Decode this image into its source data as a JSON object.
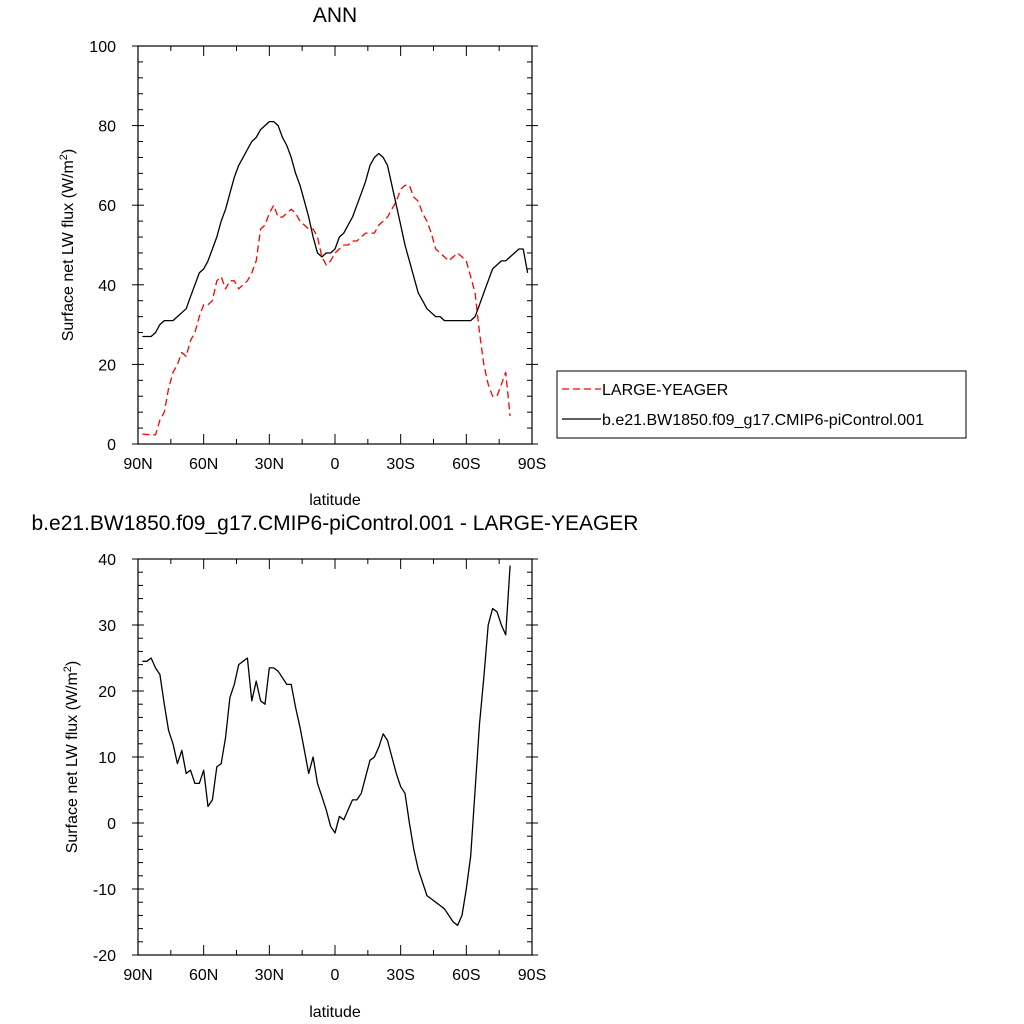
{
  "chart_data": [
    {
      "type": "line",
      "title": "ANN",
      "xlabel": "latitude",
      "ylabel": "Surface net LW flux (W/m",
      "ylabel_sup": "2",
      "ylabel_close": ")",
      "xlim": [
        90,
        -90
      ],
      "ylim": [
        0,
        100
      ],
      "xticks": [
        90,
        60,
        30,
        0,
        -30,
        -60,
        -90
      ],
      "xtick_labels": [
        "90N",
        "60N",
        "30N",
        "0",
        "30S",
        "60S",
        "90S"
      ],
      "yticks": [
        0,
        20,
        40,
        60,
        80,
        100
      ],
      "ytick_labels": [
        "0",
        "20",
        "40",
        "60",
        "80",
        "100"
      ],
      "legend_position": "right",
      "series": [
        {
          "name": "LARGE-YEAGER",
          "color": "#ff0000",
          "dash": "dashed",
          "x": [
            88,
            84,
            82,
            80,
            78,
            76,
            74,
            72,
            70,
            68,
            66,
            64,
            62,
            60,
            58,
            56,
            54,
            52,
            50,
            48,
            46,
            44,
            42,
            40,
            38,
            36,
            34,
            32,
            30,
            28,
            26,
            24,
            22,
            20,
            18,
            16,
            14,
            12,
            10,
            8,
            6,
            4,
            2,
            0,
            -2,
            -4,
            -6,
            -8,
            -10,
            -12,
            -14,
            -16,
            -18,
            -20,
            -22,
            -24,
            -26,
            -28,
            -30,
            -32,
            -34,
            -36,
            -38,
            -40,
            -42,
            -44,
            -46,
            -48,
            -50,
            -52,
            -54,
            -56,
            -58,
            -60,
            -62,
            -64,
            -66,
            -68,
            -70,
            -72,
            -74,
            -76,
            -78,
            -80
          ],
          "y": [
            2.5,
            2.3,
            2.3,
            6,
            8,
            14,
            18,
            20,
            23,
            22,
            26,
            28,
            32,
            35,
            35,
            36,
            41,
            42,
            39,
            41,
            41,
            39,
            40,
            41,
            43,
            46,
            54,
            55,
            58,
            60,
            57,
            57,
            58,
            59,
            58,
            56,
            55,
            54,
            54,
            52,
            47,
            45,
            46,
            48,
            49,
            50,
            50,
            51,
            51,
            52,
            53,
            53,
            53,
            55,
            56,
            57,
            59,
            61,
            64,
            65,
            65,
            62,
            61,
            58,
            56,
            53,
            49,
            48,
            47,
            46,
            47,
            48,
            47,
            46,
            42,
            38,
            28,
            20,
            15,
            12,
            12,
            15,
            18,
            7
          ]
        },
        {
          "name": "b.e21.BW1850.f09_g17.CMIP6-piControl.001",
          "color": "#000000",
          "dash": "solid",
          "x": [
            88,
            86,
            84,
            82,
            80,
            78,
            76,
            74,
            72,
            70,
            68,
            66,
            64,
            62,
            60,
            58,
            56,
            54,
            52,
            50,
            48,
            46,
            44,
            42,
            40,
            38,
            36,
            34,
            32,
            30,
            28,
            26,
            24,
            22,
            20,
            18,
            16,
            14,
            12,
            10,
            8,
            6,
            4,
            2,
            0,
            -2,
            -4,
            -6,
            -8,
            -10,
            -12,
            -14,
            -16,
            -18,
            -20,
            -22,
            -24,
            -26,
            -28,
            -30,
            -32,
            -34,
            -36,
            -38,
            -40,
            -42,
            -44,
            -46,
            -48,
            -50,
            -52,
            -54,
            -56,
            -58,
            -60,
            -62,
            -64,
            -66,
            -68,
            -70,
            -72,
            -74,
            -76,
            -78,
            -80,
            -82,
            -84,
            -86,
            -88
          ],
          "y": [
            27,
            27,
            27,
            28,
            30,
            31,
            31,
            31,
            32,
            33,
            34,
            37,
            40,
            43,
            44,
            46,
            49,
            52,
            56,
            59,
            63,
            67,
            70,
            72,
            74,
            76,
            77,
            79,
            80,
            81,
            81,
            80,
            77,
            75,
            72,
            68,
            65,
            61,
            57,
            52,
            48,
            47,
            48,
            48,
            49,
            52,
            53,
            55,
            57,
            60,
            63,
            66,
            70,
            72,
            73,
            72,
            70,
            65,
            60,
            55,
            50,
            46,
            42,
            38,
            36,
            34,
            33,
            32,
            32,
            31,
            31,
            31,
            31,
            31,
            31,
            31,
            32,
            35,
            38,
            41,
            44,
            45,
            46,
            46,
            47,
            48,
            49,
            49,
            43
          ]
        }
      ]
    },
    {
      "type": "line",
      "title": "b.e21.BW1850.f09_g17.CMIP6-piControl.001 - LARGE-YEAGER",
      "xlabel": "latitude",
      "ylabel": "Surface net LW flux (W/m",
      "ylabel_sup": "2",
      "ylabel_close": ")",
      "xlim": [
        90,
        -90
      ],
      "ylim": [
        -20,
        40
      ],
      "xticks": [
        90,
        60,
        30,
        0,
        -30,
        -60,
        -90
      ],
      "xtick_labels": [
        "90N",
        "60N",
        "30N",
        "0",
        "30S",
        "60S",
        "90S"
      ],
      "yticks": [
        -20,
        -10,
        0,
        10,
        20,
        30,
        40
      ],
      "ytick_labels": [
        "-20",
        "-10",
        "0",
        "10",
        "20",
        "30",
        "40"
      ],
      "series": [
        {
          "color": "#000000",
          "dash": "solid",
          "x": [
            88,
            86,
            84,
            82,
            80,
            78,
            76,
            74,
            72,
            70,
            68,
            66,
            64,
            62,
            60,
            58,
            56,
            54,
            52,
            50,
            48,
            46,
            44,
            42,
            40,
            38,
            36,
            34,
            32,
            30,
            28,
            26,
            24,
            22,
            20,
            18,
            16,
            14,
            12,
            10,
            8,
            6,
            4,
            2,
            0,
            -2,
            -4,
            -6,
            -8,
            -10,
            -12,
            -14,
            -16,
            -18,
            -20,
            -22,
            -24,
            -26,
            -28,
            -30,
            -32,
            -34,
            -36,
            -38,
            -40,
            -42,
            -44,
            -46,
            -48,
            -50,
            -52,
            -54,
            -56,
            -58,
            -60,
            -62,
            -64,
            -66,
            -68,
            -70,
            -72,
            -74,
            -76,
            -78,
            -80
          ],
          "y": [
            24.5,
            24.5,
            25,
            23.5,
            22.5,
            18,
            14,
            12,
            9,
            11,
            7.5,
            8,
            6,
            6,
            8,
            2.5,
            3.5,
            8.5,
            9,
            13,
            19,
            21,
            24,
            24.5,
            25,
            18.5,
            21.5,
            18.5,
            18,
            23.5,
            23.5,
            23,
            22,
            21,
            21,
            17.5,
            14.5,
            11,
            7.5,
            10,
            6,
            4,
            2,
            -0.5,
            -1.5,
            1,
            0.5,
            2,
            3.5,
            3.5,
            4.5,
            7,
            9.5,
            10,
            11.5,
            13.5,
            12.5,
            10,
            7.5,
            5.5,
            4.5,
            0,
            -4,
            -7,
            -9,
            -11,
            -11.5,
            -12,
            -12.5,
            -13,
            -14,
            -15,
            -15.5,
            -14,
            -10,
            -5,
            5,
            15,
            22,
            30,
            32.5,
            32,
            30,
            28.5,
            39
          ]
        }
      ]
    }
  ]
}
